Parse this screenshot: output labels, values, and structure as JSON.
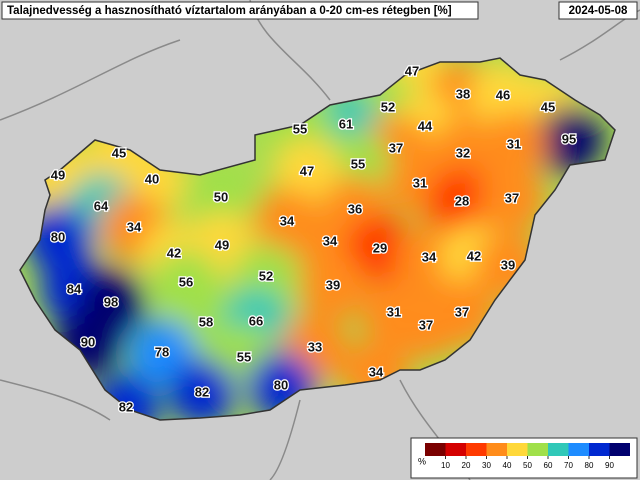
{
  "header": {
    "title": "Talajnedvesség a hasznosítható víztartalom arányában a 0-20 cm-es rétegben [%]",
    "date": "2024-05-08"
  },
  "stations": [
    {
      "value": 47
    },
    {
      "value": 38
    },
    {
      "value": 46
    },
    {
      "value": 45
    },
    {
      "value": 95
    },
    {
      "value": 52
    },
    {
      "value": 61
    },
    {
      "value": 55
    },
    {
      "value": 44
    },
    {
      "value": 37
    },
    {
      "value": 32
    },
    {
      "value": 31
    },
    {
      "value": 45
    },
    {
      "value": 55
    },
    {
      "value": 47
    },
    {
      "value": 49
    },
    {
      "value": 40
    },
    {
      "value": 31
    },
    {
      "value": 50
    },
    {
      "value": 36
    },
    {
      "value": 28
    },
    {
      "value": 37
    },
    {
      "value": 64
    },
    {
      "value": 34
    },
    {
      "value": 34
    },
    {
      "value": 34
    },
    {
      "value": 80
    },
    {
      "value": 42
    },
    {
      "value": 49
    },
    {
      "value": 29
    },
    {
      "value": 34
    },
    {
      "value": 42
    },
    {
      "value": 39
    },
    {
      "value": 52
    },
    {
      "value": 56
    },
    {
      "value": 39
    },
    {
      "value": 84
    },
    {
      "value": 98
    },
    {
      "value": 31
    },
    {
      "value": 37
    },
    {
      "value": 58
    },
    {
      "value": 66
    },
    {
      "value": 37
    },
    {
      "value": 90
    },
    {
      "value": 78
    },
    {
      "value": 33
    },
    {
      "value": 55
    },
    {
      "value": 34
    },
    {
      "value": 80
    },
    {
      "value": 82
    },
    {
      "value": 82
    }
  ],
  "colorbar": {
    "unit": "%",
    "ticks": [
      10,
      20,
      30,
      40,
      50,
      60,
      70,
      80,
      90
    ]
  }
}
